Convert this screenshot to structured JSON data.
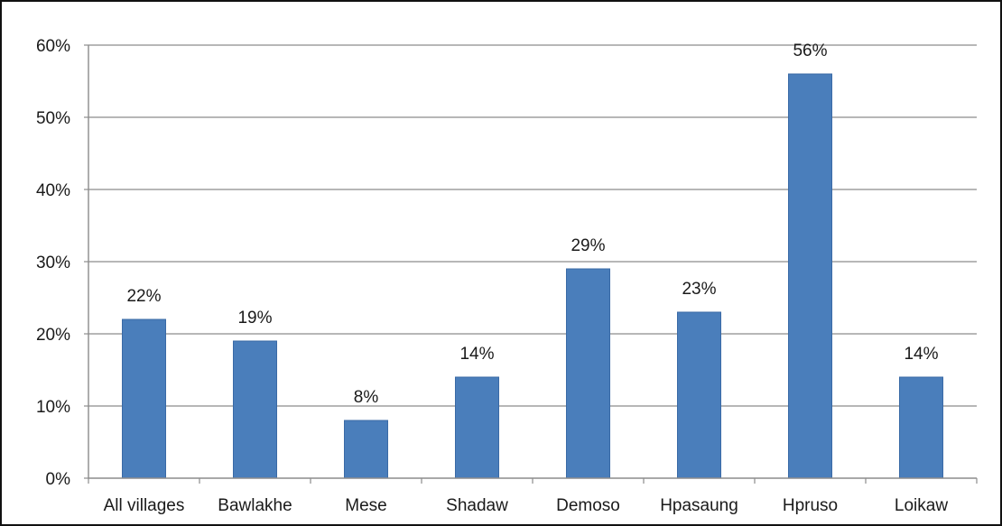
{
  "chart_data": {
    "type": "bar",
    "title": "",
    "xlabel": "",
    "ylabel": "",
    "categories": [
      "All villages",
      "Bawlakhe",
      "Mese",
      "Shadaw",
      "Demoso",
      "Hpasaung",
      "Hpruso",
      "Loikaw"
    ],
    "values": [
      22,
      19,
      8,
      14,
      29,
      23,
      56,
      14
    ],
    "value_labels": [
      "22%",
      "19%",
      "8%",
      "14%",
      "29%",
      "23%",
      "56%",
      "14%"
    ],
    "ylim": [
      0,
      60
    ],
    "y_ticks": [
      0,
      10,
      20,
      30,
      40,
      50,
      60
    ],
    "y_tick_labels": [
      "0%",
      "10%",
      "20%",
      "30%",
      "40%",
      "50%",
      "60%"
    ],
    "grid": true,
    "legend": "none",
    "colors": {
      "bar": "#4a7ebb",
      "bar_edge": "#3a6aa6",
      "grid": "#8c8c8c",
      "axis": "#8c8c8c",
      "text": "#1a1a1a",
      "frame": "#111111"
    }
  }
}
